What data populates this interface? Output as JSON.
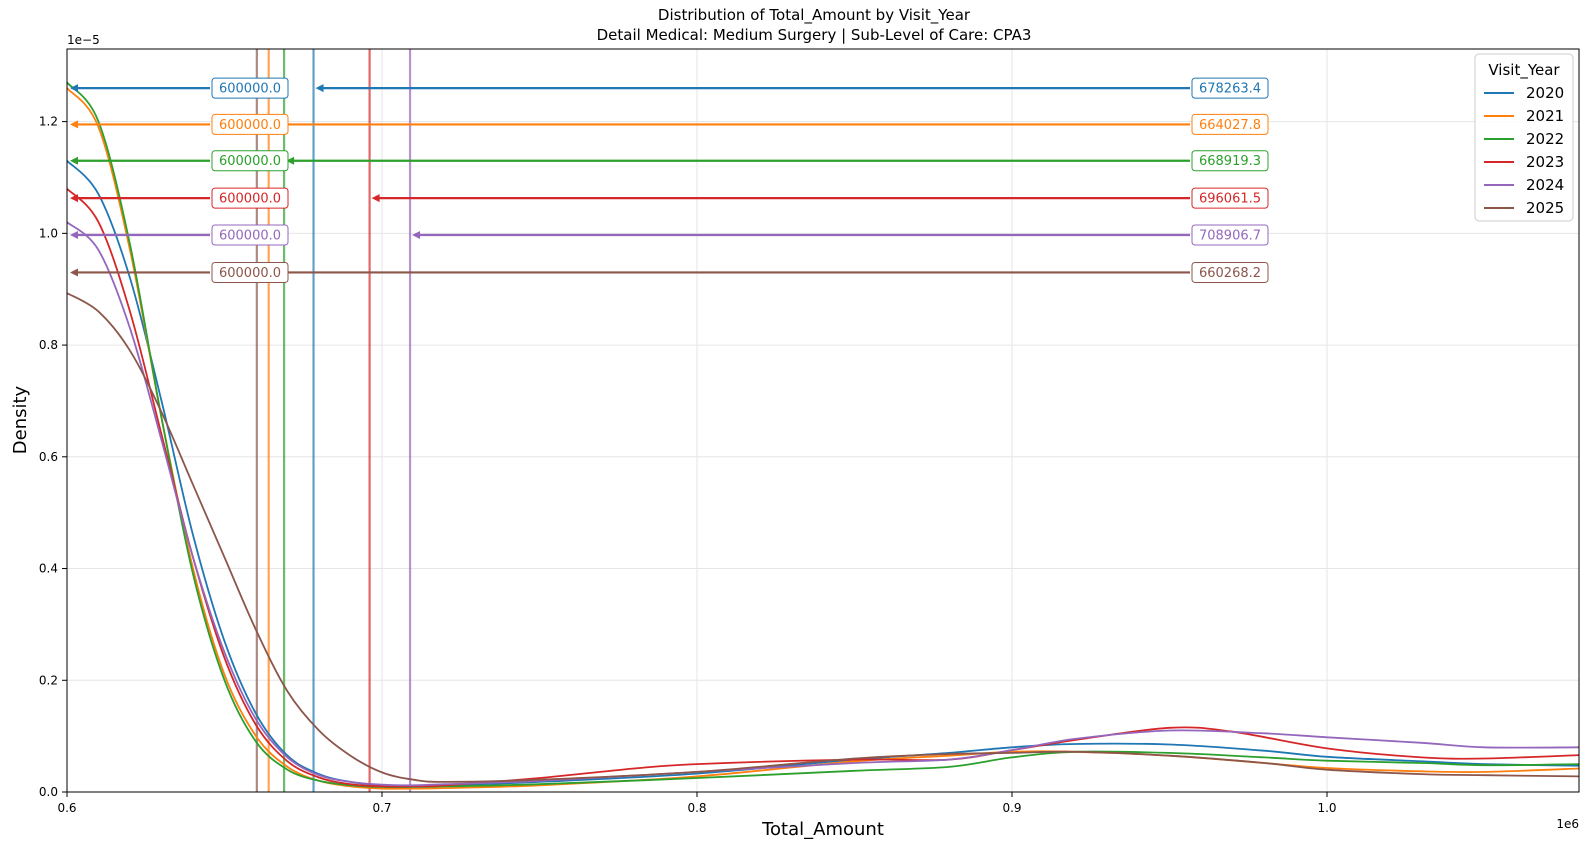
{
  "chart_data": {
    "type": "line",
    "title": "Distribution of Total_Amount by Visit_Year",
    "subtitle": "Detail Medical: Medium Surgery | Sub-Level of Care: CPA3",
    "xlabel": "Total_Amount",
    "ylabel": "Density",
    "x_offset_label": "1e6",
    "y_offset_label": "1e−5",
    "xlim": [
      0.6,
      1.08
    ],
    "ylim": [
      0,
      1.33
    ],
    "x_ticks": [
      0.6,
      0.7,
      0.8,
      0.9,
      1.0
    ],
    "x_tick_labels": [
      "0.6",
      "0.7",
      "0.8",
      "0.9",
      "1.0"
    ],
    "y_ticks": [
      0.0,
      0.2,
      0.4,
      0.6,
      0.8,
      1.0,
      1.2
    ],
    "y_tick_labels": [
      "0.0",
      "0.2",
      "0.4",
      "0.6",
      "0.8",
      "1.0",
      "1.2"
    ],
    "grid": true,
    "legend_title": "Visit_Year",
    "legend_position": "top-right",
    "series": [
      {
        "name": "2020",
        "color": "#1f77b4",
        "mean": 678263.4,
        "min": 600000.0,
        "mean_label": "678263.4",
        "min_label": "600000.0",
        "arrow_y": 1.26,
        "points": [
          [
            0.6,
            1.13
          ],
          [
            0.61,
            1.07
          ],
          [
            0.62,
            0.92
          ],
          [
            0.63,
            0.7
          ],
          [
            0.64,
            0.46
          ],
          [
            0.65,
            0.27
          ],
          [
            0.66,
            0.14
          ],
          [
            0.67,
            0.065
          ],
          [
            0.68,
            0.032
          ],
          [
            0.69,
            0.018
          ],
          [
            0.7,
            0.012
          ],
          [
            0.71,
            0.011
          ],
          [
            0.72,
            0.012
          ],
          [
            0.75,
            0.018
          ],
          [
            0.8,
            0.033
          ],
          [
            0.85,
            0.058
          ],
          [
            0.88,
            0.07
          ],
          [
            0.9,
            0.08
          ],
          [
            0.92,
            0.086
          ],
          [
            0.95,
            0.085
          ],
          [
            0.98,
            0.074
          ],
          [
            1.0,
            0.063
          ],
          [
            1.03,
            0.055
          ],
          [
            1.05,
            0.05
          ],
          [
            1.08,
            0.047
          ]
        ]
      },
      {
        "name": "2021",
        "color": "#ff7f0e",
        "mean": 664027.8,
        "min": 600000.0,
        "mean_label": "664027.8",
        "min_label": "600000.0",
        "arrow_y": 1.195,
        "points": [
          [
            0.6,
            1.26
          ],
          [
            0.61,
            1.19
          ],
          [
            0.62,
            0.97
          ],
          [
            0.63,
            0.67
          ],
          [
            0.64,
            0.4
          ],
          [
            0.65,
            0.21
          ],
          [
            0.66,
            0.1
          ],
          [
            0.67,
            0.045
          ],
          [
            0.68,
            0.02
          ],
          [
            0.69,
            0.01
          ],
          [
            0.7,
            0.006
          ],
          [
            0.71,
            0.006
          ],
          [
            0.72,
            0.007
          ],
          [
            0.75,
            0.012
          ],
          [
            0.8,
            0.028
          ],
          [
            0.85,
            0.055
          ],
          [
            0.88,
            0.065
          ],
          [
            0.9,
            0.072
          ],
          [
            0.92,
            0.072
          ],
          [
            0.95,
            0.065
          ],
          [
            0.98,
            0.052
          ],
          [
            1.0,
            0.043
          ],
          [
            1.03,
            0.037
          ],
          [
            1.05,
            0.036
          ],
          [
            1.08,
            0.042
          ]
        ]
      },
      {
        "name": "2022",
        "color": "#2ca02c",
        "mean": 668919.3,
        "min": 600000.0,
        "mean_label": "668919.3",
        "min_label": "600000.0",
        "arrow_y": 1.13,
        "points": [
          [
            0.6,
            1.27
          ],
          [
            0.61,
            1.2
          ],
          [
            0.62,
            0.98
          ],
          [
            0.63,
            0.67
          ],
          [
            0.64,
            0.39
          ],
          [
            0.65,
            0.2
          ],
          [
            0.66,
            0.09
          ],
          [
            0.67,
            0.04
          ],
          [
            0.68,
            0.02
          ],
          [
            0.69,
            0.012
          ],
          [
            0.7,
            0.009
          ],
          [
            0.71,
            0.009
          ],
          [
            0.72,
            0.01
          ],
          [
            0.75,
            0.014
          ],
          [
            0.8,
            0.025
          ],
          [
            0.85,
            0.038
          ],
          [
            0.88,
            0.045
          ],
          [
            0.9,
            0.062
          ],
          [
            0.92,
            0.072
          ],
          [
            0.95,
            0.07
          ],
          [
            0.98,
            0.062
          ],
          [
            1.0,
            0.056
          ],
          [
            1.03,
            0.052
          ],
          [
            1.05,
            0.048
          ],
          [
            1.08,
            0.05
          ]
        ]
      },
      {
        "name": "2023",
        "color": "#d62728",
        "mean": 696061.5,
        "min": 600000.0,
        "mean_label": "696061.5",
        "min_label": "600000.0",
        "arrow_y": 1.063,
        "points": [
          [
            0.6,
            1.08
          ],
          [
            0.61,
            1.02
          ],
          [
            0.62,
            0.86
          ],
          [
            0.63,
            0.64
          ],
          [
            0.64,
            0.42
          ],
          [
            0.65,
            0.24
          ],
          [
            0.66,
            0.12
          ],
          [
            0.67,
            0.055
          ],
          [
            0.68,
            0.026
          ],
          [
            0.69,
            0.014
          ],
          [
            0.7,
            0.01
          ],
          [
            0.71,
            0.01
          ],
          [
            0.72,
            0.012
          ],
          [
            0.75,
            0.025
          ],
          [
            0.78,
            0.042
          ],
          [
            0.8,
            0.05
          ],
          [
            0.85,
            0.058
          ],
          [
            0.88,
            0.058
          ],
          [
            0.9,
            0.075
          ],
          [
            0.92,
            0.093
          ],
          [
            0.95,
            0.115
          ],
          [
            0.97,
            0.108
          ],
          [
            1.0,
            0.078
          ],
          [
            1.03,
            0.062
          ],
          [
            1.05,
            0.06
          ],
          [
            1.08,
            0.066
          ]
        ]
      },
      {
        "name": "2024",
        "color": "#9467bd",
        "mean": 708906.7,
        "min": 600000.0,
        "mean_label": "708906.7",
        "min_label": "600000.0",
        "arrow_y": 0.997,
        "points": [
          [
            0.6,
            1.02
          ],
          [
            0.61,
            0.97
          ],
          [
            0.62,
            0.83
          ],
          [
            0.63,
            0.63
          ],
          [
            0.64,
            0.42
          ],
          [
            0.65,
            0.25
          ],
          [
            0.66,
            0.13
          ],
          [
            0.67,
            0.062
          ],
          [
            0.68,
            0.03
          ],
          [
            0.69,
            0.018
          ],
          [
            0.7,
            0.013
          ],
          [
            0.71,
            0.012
          ],
          [
            0.72,
            0.014
          ],
          [
            0.75,
            0.02
          ],
          [
            0.8,
            0.036
          ],
          [
            0.85,
            0.052
          ],
          [
            0.88,
            0.058
          ],
          [
            0.9,
            0.075
          ],
          [
            0.92,
            0.095
          ],
          [
            0.95,
            0.11
          ],
          [
            0.98,
            0.105
          ],
          [
            1.0,
            0.098
          ],
          [
            1.03,
            0.088
          ],
          [
            1.05,
            0.08
          ],
          [
            1.08,
            0.08
          ]
        ]
      },
      {
        "name": "2025",
        "color": "#8c564b",
        "mean": 660268.2,
        "min": 600000.0,
        "mean_label": "660268.2",
        "min_label": "600000.0",
        "arrow_y": 0.93,
        "points": [
          [
            0.6,
            0.893
          ],
          [
            0.61,
            0.86
          ],
          [
            0.62,
            0.79
          ],
          [
            0.63,
            0.68
          ],
          [
            0.64,
            0.55
          ],
          [
            0.65,
            0.42
          ],
          [
            0.66,
            0.29
          ],
          [
            0.67,
            0.18
          ],
          [
            0.68,
            0.11
          ],
          [
            0.69,
            0.065
          ],
          [
            0.7,
            0.035
          ],
          [
            0.71,
            0.022
          ],
          [
            0.72,
            0.018
          ],
          [
            0.75,
            0.022
          ],
          [
            0.8,
            0.036
          ],
          [
            0.85,
            0.06
          ],
          [
            0.88,
            0.068
          ],
          [
            0.9,
            0.07
          ],
          [
            0.92,
            0.072
          ],
          [
            0.95,
            0.065
          ],
          [
            0.98,
            0.052
          ],
          [
            1.0,
            0.04
          ],
          [
            1.03,
            0.032
          ],
          [
            1.05,
            0.03
          ],
          [
            1.08,
            0.028
          ]
        ]
      }
    ]
  }
}
